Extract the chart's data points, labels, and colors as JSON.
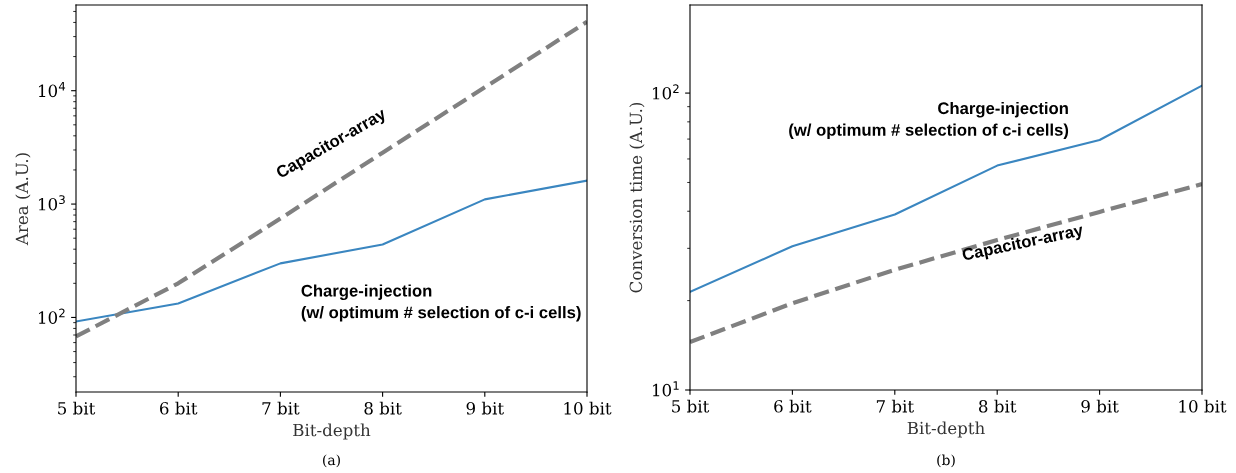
{
  "chart_data": [
    {
      "type": "line",
      "xlabel": "Bit-depth",
      "ylabel": "Area (A.U.)",
      "log": "y",
      "categories": [
        "5 bit",
        "6 bit",
        "7 bit",
        "8 bit",
        "9 bit",
        "10 bit"
      ],
      "ylim": [
        22,
        57000
      ],
      "yticks": [
        {
          "value": 100,
          "label": "10$^{2}$"
        },
        {
          "value": 1000,
          "label": "10$^{3}$"
        },
        {
          "value": 10000,
          "label": "10$^{4}$"
        }
      ],
      "series": [
        {
          "name": "Charge-injection\n(w/ optimum # selection of c-i cells)",
          "color": "#3a86c0",
          "line_style": "solid",
          "values": [
            92,
            133,
            300,
            440,
            1100,
            1610
          ]
        },
        {
          "name": "Capacitor-array",
          "color": "#808080",
          "line_style": "dashed",
          "values": [
            68,
            200,
            745,
            2840,
            10700,
            40500
          ]
        }
      ],
      "annotations": [
        "(a)"
      ]
    },
    {
      "type": "line",
      "xlabel": "Bit-depth",
      "ylabel": "Conversion time (A.U.)",
      "log": "y",
      "categories": [
        "5 bit",
        "6 bit",
        "7 bit",
        "8 bit",
        "9 bit",
        "10 bit"
      ],
      "ylim": [
        10,
        198
      ],
      "yticks": [
        {
          "value": 10,
          "label": "10$^{1}$"
        },
        {
          "value": 100,
          "label": "10$^{2}$"
        }
      ],
      "series": [
        {
          "name": "Charge-injection\n(w/ optimum # selection of c-i cells)",
          "color": "#3a86c0",
          "line_style": "solid",
          "values": [
            21.4,
            30.5,
            39,
            57,
            69.5,
            106
          ]
        },
        {
          "name": "Capacitor-array",
          "color": "#808080",
          "line_style": "dashed",
          "values": [
            14.5,
            19.6,
            25.4,
            32,
            39.8,
            49.4
          ]
        }
      ],
      "annotations": [
        "(b)"
      ]
    }
  ]
}
